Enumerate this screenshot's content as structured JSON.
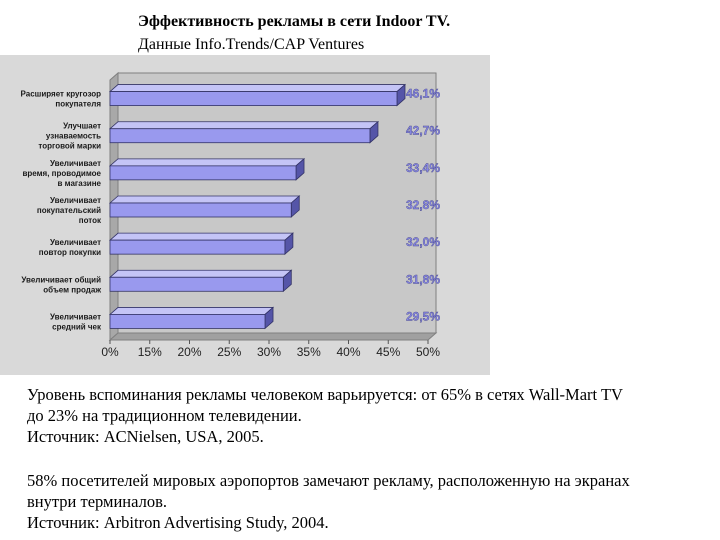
{
  "header": {
    "title": "Эффективность рекламы в сети Indoor TV.",
    "subtitle": "Данные Info.Trends/CAP Ventures"
  },
  "chart_data": {
    "type": "bar",
    "orientation": "horizontal",
    "categories": [
      [
        "Расширяет кругозор",
        "покупателя"
      ],
      [
        "Улучшает",
        "узнаваемость",
        "торговой марки"
      ],
      [
        "Увеличивает",
        "время, проводимое",
        "в магазине"
      ],
      [
        "Увеличивает",
        "покупательский",
        "поток"
      ],
      [
        "Увеличивает",
        "повтор покупки"
      ],
      [
        "Увеличивает общий",
        "объем продаж"
      ],
      [
        "Увеличивает",
        "средний чек"
      ]
    ],
    "values": [
      46.1,
      42.7,
      33.4,
      32.8,
      32.0,
      31.8,
      29.5
    ],
    "value_labels": [
      "46,1%",
      "42,7%",
      "33,4%",
      "32,8%",
      "32,0%",
      "31,8%",
      "29,5%"
    ],
    "xticks": [
      "0%",
      "15%",
      "20%",
      "25%",
      "30%",
      "35%",
      "40%",
      "45%",
      "50%"
    ],
    "xlim": [
      10,
      50
    ],
    "colors": {
      "bar": "#9999ee",
      "bar_top": "#c4c4f6",
      "bar_side": "#5555a8",
      "label": "#8a8ae6",
      "panel": "#d9d9d9"
    }
  },
  "notes": {
    "p1": [
      "Уровень вспоминания рекламы человеком варьируется: от 65% в сетях Wall-Mart TV",
      "до 23% на традиционном телевидении.",
      "Источник: ACNielsen, USA, 2005."
    ],
    "p2": [
      "58% посетителей мировых аэропортов замечают рекламу, расположенную на экранах",
      "внутри терминалов.",
      "Источник: Arbitron Advertising Study, 2004."
    ]
  }
}
